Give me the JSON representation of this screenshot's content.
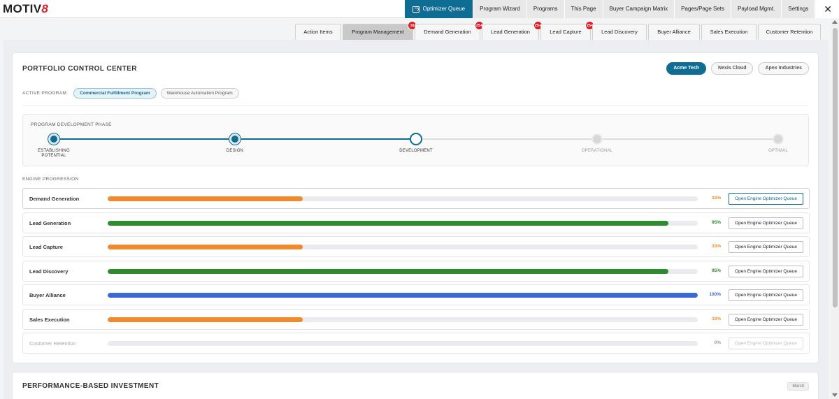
{
  "brand": {
    "name_prefix": "MOTIV",
    "name_suffix": "8"
  },
  "topnav": {
    "items": [
      {
        "label": "Optimizer Queue",
        "icon": "queue-icon",
        "active": true
      },
      {
        "label": "Program Wizard"
      },
      {
        "label": "Programs"
      },
      {
        "label": "This Page"
      },
      {
        "label": "Buyer Campaign Matrix"
      },
      {
        "label": "Pages/Page Sets"
      },
      {
        "label": "Payload Mgmt."
      },
      {
        "label": "Settings"
      }
    ],
    "close_glyph": "✕"
  },
  "subtabs": [
    {
      "label": "Action Items",
      "badge": ""
    },
    {
      "label": "Program Management",
      "badge": "16",
      "active": true
    },
    {
      "label": "Demand Generation",
      "badge": "25+"
    },
    {
      "label": "Lead Generation",
      "badge": "25+"
    },
    {
      "label": "Lead Capture",
      "badge": "25+"
    },
    {
      "label": "Lead Discovery",
      "badge": ""
    },
    {
      "label": "Buyer Alliance",
      "badge": ""
    },
    {
      "label": "Sales Execution",
      "badge": ""
    },
    {
      "label": "Customer Retention",
      "badge": ""
    }
  ],
  "portfolio": {
    "title": "PORTFOLIO CONTROL CENTER",
    "companies": [
      "Acme Tech",
      "Nexis Cloud",
      "Apex Industries"
    ],
    "selected_company": "Acme Tech",
    "active_program_label": "ACTIVE PROGRAM:",
    "programs": [
      "Commercial Fulfillment Program",
      "Warehouse Automation Program"
    ],
    "selected_program": "Commercial Fulfillment Program"
  },
  "phase": {
    "title": "PROGRAM DEVELOPMENT PHASE",
    "steps": [
      {
        "label_line1": "ESTABLISHING",
        "label_line2": "POTENTIAL",
        "state": "done"
      },
      {
        "label_line1": "DESIGN",
        "label_line2": "",
        "state": "done"
      },
      {
        "label_line1": "DEVELOPMENT",
        "label_line2": "",
        "state": "current"
      },
      {
        "label_line1": "OPERATIONAL",
        "label_line2": "",
        "state": "todo"
      },
      {
        "label_line1": "OPTIMAL",
        "label_line2": "",
        "state": "todo"
      }
    ],
    "progress_color": "#0f6d94"
  },
  "engines": {
    "title": "ENGINE PROGRESSION",
    "button_label": "Open Engine Optimizer Queue",
    "rows": [
      {
        "name": "Demand Generation",
        "percent": 33,
        "percent_label": "33%",
        "color": "#f08a2c"
      },
      {
        "name": "Lead Generation",
        "percent": 95,
        "percent_label": "95%",
        "color": "#2e8b2e"
      },
      {
        "name": "Lead Capture",
        "percent": 33,
        "percent_label": "33%",
        "color": "#f08a2c"
      },
      {
        "name": "Lead Discovery",
        "percent": 95,
        "percent_label": "95%",
        "color": "#2e8b2e"
      },
      {
        "name": "Buyer Alliance",
        "percent": 100,
        "percent_label": "100%",
        "color": "#3b68d8"
      },
      {
        "name": "Sales Execution",
        "percent": 33,
        "percent_label": "33%",
        "color": "#f08a2c"
      },
      {
        "name": "Customer Retention",
        "percent": 0,
        "percent_label": "0%",
        "color": "#999999"
      }
    ]
  },
  "performance": {
    "title": "PERFORMANCE-BASED INVESTMENT",
    "month": "March"
  }
}
